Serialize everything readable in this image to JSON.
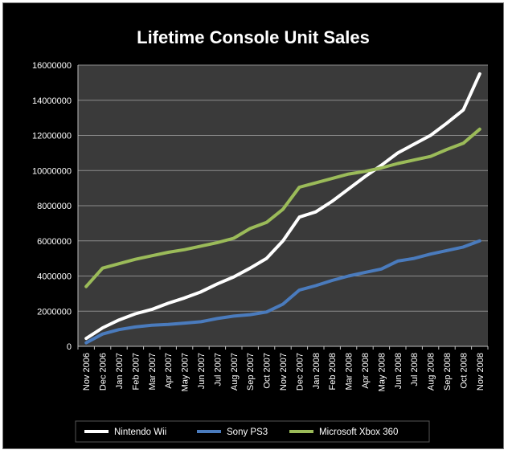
{
  "chart_data": {
    "type": "line",
    "title": "Lifetime Console Unit Sales",
    "xlabel": "",
    "ylabel": "",
    "ylim": [
      0,
      16000000
    ],
    "yticks": [
      0,
      2000000,
      4000000,
      6000000,
      8000000,
      10000000,
      12000000,
      14000000,
      16000000
    ],
    "ytick_labels": [
      "0",
      "2000000",
      "4000000",
      "6000000",
      "8000000",
      "10000000",
      "12000000",
      "14000000",
      "16000000"
    ],
    "grid": true,
    "legend_position": "bottom",
    "plot_background": "#3a3a3a",
    "categories": [
      "Nov 2006",
      "Dec 2006",
      "Jan 2007",
      "Feb 2007",
      "Mar 2007",
      "Apr 2007",
      "May 2007",
      "Jun 2007",
      "Jul 2007",
      "Aug 2007",
      "Sep 2007",
      "Oct 2007",
      "Nov 2007",
      "Dec 2007",
      "Jan 2008",
      "Feb 2008",
      "Mar 2008",
      "Apr 2008",
      "May 2008",
      "Jun 2008",
      "Jul 2008",
      "Aug 2008",
      "Sep 2008",
      "Oct 2008",
      "Nov 2008"
    ],
    "series": [
      {
        "name": "Nintendo Wii",
        "color": "#ffffff",
        "values": [
          450000,
          1050000,
          1500000,
          1850000,
          2100000,
          2450000,
          2750000,
          3100000,
          3550000,
          3950000,
          4450000,
          5000000,
          6000000,
          7350000,
          7650000,
          8250000,
          8950000,
          9650000,
          10300000,
          11000000,
          11500000,
          12000000,
          12700000,
          13450000,
          15500000
        ]
      },
      {
        "name": "Sony PS3",
        "color": "#4a7bbd",
        "values": [
          200000,
          700000,
          950000,
          1100000,
          1200000,
          1250000,
          1320000,
          1400000,
          1580000,
          1720000,
          1800000,
          1950000,
          2400000,
          3200000,
          3450000,
          3750000,
          4000000,
          4200000,
          4400000,
          4850000,
          5000000,
          5250000,
          5450000,
          5650000,
          6000000
        ]
      },
      {
        "name": "Microsoft Xbox 360",
        "color": "#9bbb59",
        "values": [
          3400000,
          4450000,
          4700000,
          4950000,
          5150000,
          5350000,
          5500000,
          5700000,
          5900000,
          6150000,
          6700000,
          7050000,
          7800000,
          9050000,
          9300000,
          9550000,
          9800000,
          9950000,
          10150000,
          10400000,
          10600000,
          10800000,
          11200000,
          11550000,
          12350000
        ]
      }
    ]
  }
}
